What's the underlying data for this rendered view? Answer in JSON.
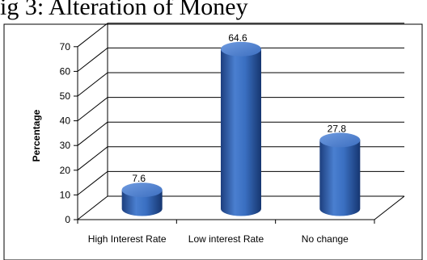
{
  "top_caption": "ig 3: Alteration of Money",
  "chart_data": {
    "type": "bar",
    "categories": [
      "High Interest Rate",
      "Low interest Rate",
      "No change"
    ],
    "values": [
      7.6,
      64.6,
      27.8
    ],
    "data_labels": [
      "7.6",
      "64.6",
      "27.8"
    ],
    "title": "",
    "xlabel": "",
    "ylabel": "Percentage",
    "ylim": [
      0,
      70
    ],
    "yticks": [
      "0",
      "10",
      "20",
      "30",
      "40",
      "50",
      "60",
      "70"
    ],
    "grid": true,
    "style": "3d-cylinder",
    "bar_color": "#3a6fc1",
    "legend": "none"
  }
}
